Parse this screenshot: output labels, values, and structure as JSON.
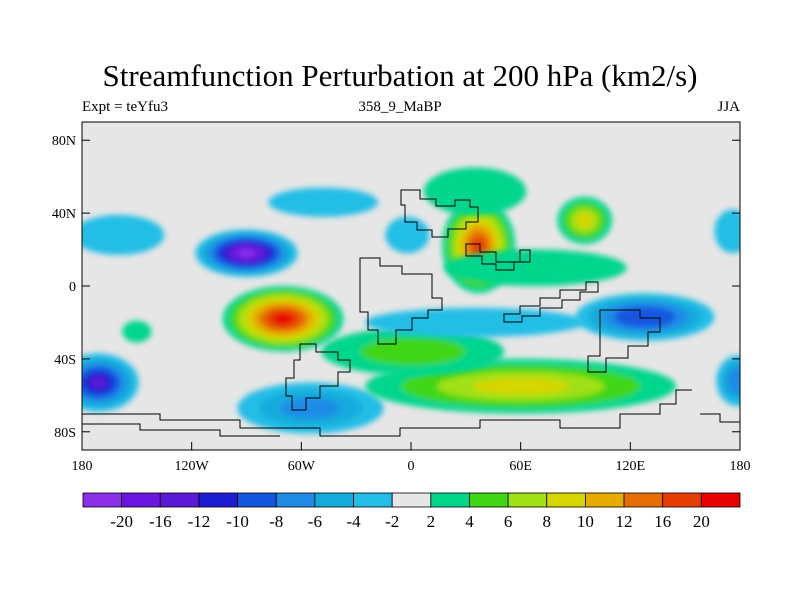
{
  "chart_data": {
    "type": "heatmap",
    "title": "Streamfunction Perturbation at 200 hPa (km2/s)",
    "left_label": "Expt = teYfu3",
    "center_label": "358_9_MaBP",
    "right_label": "JJA",
    "x_ticks": [
      {
        "value": -180,
        "label": "180"
      },
      {
        "value": -120,
        "label": "120W"
      },
      {
        "value": -60,
        "label": "60W"
      },
      {
        "value": 0,
        "label": "0"
      },
      {
        "value": 60,
        "label": "60E"
      },
      {
        "value": 120,
        "label": "120E"
      },
      {
        "value": 180,
        "label": "180"
      }
    ],
    "y_ticks": [
      {
        "value": 80,
        "label": "80N"
      },
      {
        "value": 40,
        "label": "40N"
      },
      {
        "value": 0,
        "label": "0"
      },
      {
        "value": -40,
        "label": "40S"
      },
      {
        "value": -80,
        "label": "80S"
      }
    ],
    "xlim": [
      -180,
      180
    ],
    "ylim": [
      -90,
      90
    ],
    "colorbar": {
      "colors": [
        "#8c30e8",
        "#6a14e0",
        "#5a1ad8",
        "#1c1cd0",
        "#1456e0",
        "#1e8ce6",
        "#14aadc",
        "#22bee6",
        "#e6e6e6",
        "#00d68c",
        "#40d614",
        "#a0e014",
        "#d6d600",
        "#e6ac00",
        "#e66e00",
        "#e63c00",
        "#e60000"
      ],
      "labels": [
        "-20",
        "-16",
        "-12",
        "-10",
        "-8",
        "-6",
        "-4",
        "-2",
        "2",
        "4",
        "6",
        "8",
        "10",
        "12",
        "16",
        "20"
      ]
    },
    "features": [
      {
        "lon": -90,
        "lat": 18,
        "value": -22,
        "rx": 28,
        "ry": 13
      },
      {
        "lon": -70,
        "lat": -18,
        "value": 21,
        "rx": 33,
        "ry": 18
      },
      {
        "lon": 37,
        "lat": 22,
        "value": 17,
        "rx": 20,
        "ry": 26
      },
      {
        "lon": 128,
        "lat": -17,
        "value": -10,
        "rx": 38,
        "ry": 13
      },
      {
        "lon": -171,
        "lat": -53,
        "value": -13,
        "rx": 22,
        "ry": 16
      },
      {
        "lon": 179,
        "lat": -52,
        "value": -8,
        "rx": 12,
        "ry": 14
      },
      {
        "lon": -55,
        "lat": -67,
        "value": -7,
        "rx": 40,
        "ry": 14
      },
      {
        "lon": 60,
        "lat": -55,
        "value": 8,
        "rx": 85,
        "ry": 15
      },
      {
        "lon": 1,
        "lat": -36,
        "value": 5,
        "rx": 50,
        "ry": 13
      },
      {
        "lon": 95,
        "lat": 36,
        "value": 9,
        "rx": 15,
        "ry": 13
      },
      {
        "lon": 68,
        "lat": 10,
        "value": 3,
        "rx": 50,
        "ry": 10
      },
      {
        "lon": -2,
        "lat": 28,
        "value": -3,
        "rx": 12,
        "ry": 10
      },
      {
        "lon": -160,
        "lat": 28,
        "value": -4,
        "rx": 25,
        "ry": 11
      },
      {
        "lon": -48,
        "lat": 46,
        "value": -2.5,
        "rx": 30,
        "ry": 8
      },
      {
        "lon": 35,
        "lat": 52,
        "value": 3.5,
        "rx": 28,
        "ry": 13
      },
      {
        "lon": -150,
        "lat": -25,
        "value": 2.5,
        "rx": 8,
        "ry": 6
      },
      {
        "lon": 176,
        "lat": 30,
        "value": -3,
        "rx": 10,
        "ry": 12
      },
      {
        "lon": 35,
        "lat": -20,
        "value": -3,
        "rx": 60,
        "ry": 8
      }
    ]
  }
}
